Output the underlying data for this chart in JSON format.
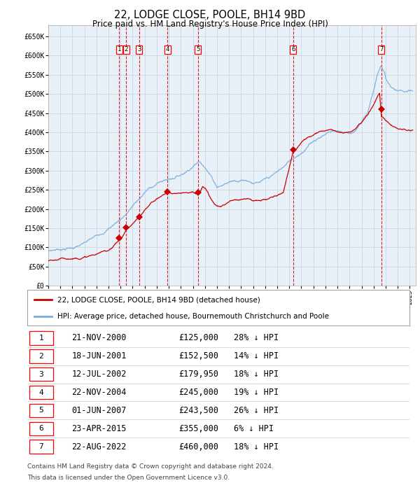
{
  "title": "22, LODGE CLOSE, POOLE, BH14 9BD",
  "subtitle": "Price paid vs. HM Land Registry's House Price Index (HPI)",
  "legend_line1": "22, LODGE CLOSE, POOLE, BH14 9BD (detached house)",
  "legend_line2": "HPI: Average price, detached house, Bournemouth Christchurch and Poole",
  "footer1": "Contains HM Land Registry data © Crown copyright and database right 2024.",
  "footer2": "This data is licensed under the Open Government Licence v3.0.",
  "ylim": [
    0,
    680000
  ],
  "yticks": [
    0,
    50000,
    100000,
    150000,
    200000,
    250000,
    300000,
    350000,
    400000,
    450000,
    500000,
    550000,
    600000,
    650000
  ],
  "ytick_labels": [
    "£0",
    "£50K",
    "£100K",
    "£150K",
    "£200K",
    "£250K",
    "£300K",
    "£350K",
    "£400K",
    "£450K",
    "£500K",
    "£550K",
    "£600K",
    "£650K"
  ],
  "hpi_color": "#7aaddc",
  "price_color": "#cc0000",
  "plot_bg": "#e8f0f8",
  "grid_color": "#c8d0dc",
  "transactions": [
    {
      "num": 1,
      "date": "2000-11-21",
      "price": 125000,
      "pct": "28%",
      "dir": "↓"
    },
    {
      "num": 2,
      "date": "2001-06-18",
      "price": 152500,
      "pct": "14%",
      "dir": "↓"
    },
    {
      "num": 3,
      "date": "2002-07-12",
      "price": 179950,
      "pct": "18%",
      "dir": "↓"
    },
    {
      "num": 4,
      "date": "2004-11-22",
      "price": 245000,
      "pct": "19%",
      "dir": "↓"
    },
    {
      "num": 5,
      "date": "2007-06-01",
      "price": 243500,
      "pct": "26%",
      "dir": "↓"
    },
    {
      "num": 6,
      "date": "2015-04-23",
      "price": 355000,
      "pct": "6%",
      "dir": "↓"
    },
    {
      "num": 7,
      "date": "2022-08-22",
      "price": 460000,
      "pct": "18%",
      "dir": "↓"
    }
  ],
  "hpi_keypoints": [
    [
      1995.0,
      90000
    ],
    [
      1996.0,
      97000
    ],
    [
      1997.0,
      102000
    ],
    [
      1998.0,
      112000
    ],
    [
      1999.0,
      128000
    ],
    [
      2000.0,
      152000
    ],
    [
      2001.0,
      178000
    ],
    [
      2001.5,
      195000
    ],
    [
      2002.0,
      215000
    ],
    [
      2002.5,
      230000
    ],
    [
      2003.0,
      248000
    ],
    [
      2003.5,
      262000
    ],
    [
      2004.0,
      272000
    ],
    [
      2004.5,
      280000
    ],
    [
      2005.0,
      285000
    ],
    [
      2005.5,
      292000
    ],
    [
      2006.0,
      300000
    ],
    [
      2006.5,
      312000
    ],
    [
      2007.0,
      328000
    ],
    [
      2007.5,
      340000
    ],
    [
      2008.0,
      332000
    ],
    [
      2008.5,
      308000
    ],
    [
      2009.0,
      282000
    ],
    [
      2009.5,
      288000
    ],
    [
      2010.0,
      296000
    ],
    [
      2010.5,
      302000
    ],
    [
      2011.0,
      306000
    ],
    [
      2011.5,
      308000
    ],
    [
      2012.0,
      304000
    ],
    [
      2012.5,
      302000
    ],
    [
      2013.0,
      306000
    ],
    [
      2013.5,
      312000
    ],
    [
      2014.0,
      322000
    ],
    [
      2014.5,
      334000
    ],
    [
      2015.0,
      348000
    ],
    [
      2015.5,
      362000
    ],
    [
      2016.0,
      376000
    ],
    [
      2016.5,
      392000
    ],
    [
      2017.0,
      408000
    ],
    [
      2017.5,
      420000
    ],
    [
      2018.0,
      430000
    ],
    [
      2018.5,
      438000
    ],
    [
      2019.0,
      440000
    ],
    [
      2019.5,
      438000
    ],
    [
      2020.0,
      436000
    ],
    [
      2020.5,
      445000
    ],
    [
      2021.0,
      462000
    ],
    [
      2021.5,
      490000
    ],
    [
      2022.0,
      548000
    ],
    [
      2022.3,
      590000
    ],
    [
      2022.6,
      612000
    ],
    [
      2022.9,
      595000
    ],
    [
      2023.0,
      578000
    ],
    [
      2023.3,
      562000
    ],
    [
      2023.6,
      548000
    ],
    [
      2024.0,
      540000
    ],
    [
      2024.5,
      535000
    ],
    [
      2025.2,
      530000
    ]
  ],
  "price_keypoints": [
    [
      1995.0,
      65000
    ],
    [
      1997.0,
      72000
    ],
    [
      1999.0,
      85000
    ],
    [
      2000.0,
      95000
    ],
    [
      2000.9,
      124000
    ],
    [
      2001.0,
      125000
    ],
    [
      2001.05,
      126000
    ],
    [
      2001.5,
      152500
    ],
    [
      2001.55,
      153000
    ],
    [
      2002.0,
      165000
    ],
    [
      2002.55,
      179950
    ],
    [
      2002.6,
      180500
    ],
    [
      2003.0,
      196000
    ],
    [
      2003.5,
      215000
    ],
    [
      2004.0,
      228000
    ],
    [
      2004.9,
      245000
    ],
    [
      2004.95,
      245500
    ],
    [
      2005.2,
      243000
    ],
    [
      2005.5,
      241000
    ],
    [
      2006.0,
      244000
    ],
    [
      2006.5,
      248000
    ],
    [
      2007.0,
      252000
    ],
    [
      2007.45,
      243500
    ],
    [
      2007.5,
      244000
    ],
    [
      2007.8,
      262000
    ],
    [
      2008.0,
      258000
    ],
    [
      2008.3,
      242000
    ],
    [
      2008.6,
      225000
    ],
    [
      2009.0,
      207000
    ],
    [
      2009.3,
      205000
    ],
    [
      2009.6,
      210000
    ],
    [
      2010.0,
      218000
    ],
    [
      2010.5,
      224000
    ],
    [
      2011.0,
      228000
    ],
    [
      2011.5,
      232000
    ],
    [
      2012.0,
      228000
    ],
    [
      2012.5,
      226000
    ],
    [
      2013.0,
      228000
    ],
    [
      2013.5,
      232000
    ],
    [
      2014.0,
      238000
    ],
    [
      2014.5,
      245000
    ],
    [
      2015.3,
      355000
    ],
    [
      2015.35,
      356000
    ],
    [
      2015.8,
      370000
    ],
    [
      2016.0,
      378000
    ],
    [
      2016.5,
      392000
    ],
    [
      2017.0,
      402000
    ],
    [
      2017.5,
      412000
    ],
    [
      2018.0,
      418000
    ],
    [
      2018.5,
      422000
    ],
    [
      2019.0,
      416000
    ],
    [
      2019.5,
      414000
    ],
    [
      2020.0,
      418000
    ],
    [
      2020.5,
      428000
    ],
    [
      2021.0,
      445000
    ],
    [
      2021.5,
      462000
    ],
    [
      2022.0,
      488000
    ],
    [
      2022.3,
      510000
    ],
    [
      2022.5,
      522000
    ],
    [
      2022.65,
      460000
    ],
    [
      2022.7,
      461000
    ],
    [
      2023.0,
      452000
    ],
    [
      2023.5,
      440000
    ],
    [
      2024.0,
      432000
    ],
    [
      2024.5,
      428000
    ],
    [
      2025.2,
      428000
    ]
  ]
}
